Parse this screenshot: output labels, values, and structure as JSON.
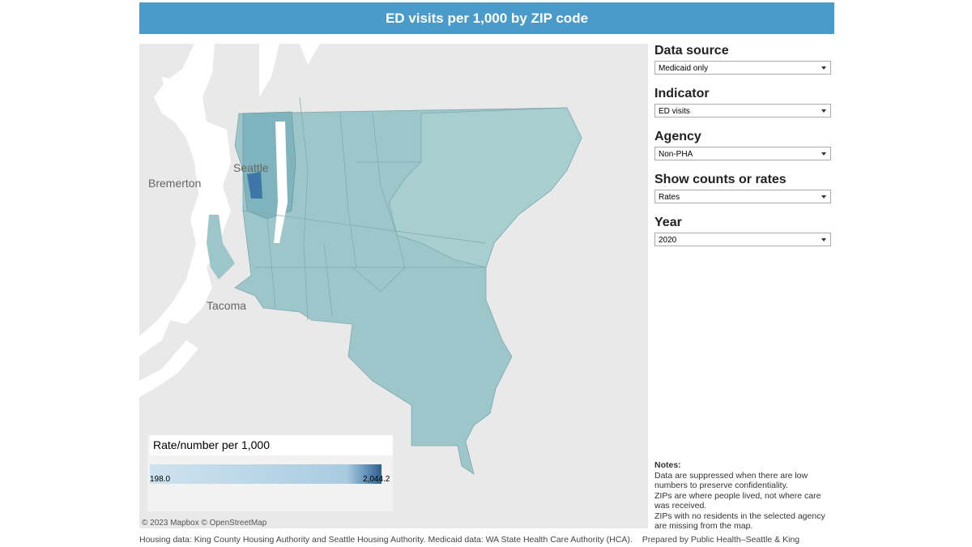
{
  "header": {
    "title": "ED visits per 1,000 by ZIP code"
  },
  "filters": [
    {
      "label": "Data source",
      "value": "Medicaid only"
    },
    {
      "label": "Indicator",
      "value": "ED visits"
    },
    {
      "label": "Agency",
      "value": "Non-PHA"
    },
    {
      "label": "Show counts or rates",
      "value": "Rates"
    },
    {
      "label": "Year",
      "value": "2020"
    }
  ],
  "map": {
    "places": [
      "Bremerton",
      "Tacoma",
      "Seattle"
    ],
    "attribution": "© 2023 Mapbox  © OpenStreetMap"
  },
  "legend": {
    "title": "Rate/number per 1,000",
    "min": "198.0",
    "max": "2,044.2"
  },
  "notes": {
    "title": "Notes:",
    "lines": [
      "Data are suppressed when there are low numbers to preserve confidentiality.",
      "ZIPs are where people lived, not where care was received.",
      "ZIPs with no residents in the selected agency are missing from the map."
    ]
  },
  "footer": {
    "sources": "Housing data: King County Housing Authority and Seattle Housing Authority. Medicaid data: WA State Health Care Authority (HCA).",
    "credit": "Prepared by Public Health–Seattle & King"
  }
}
